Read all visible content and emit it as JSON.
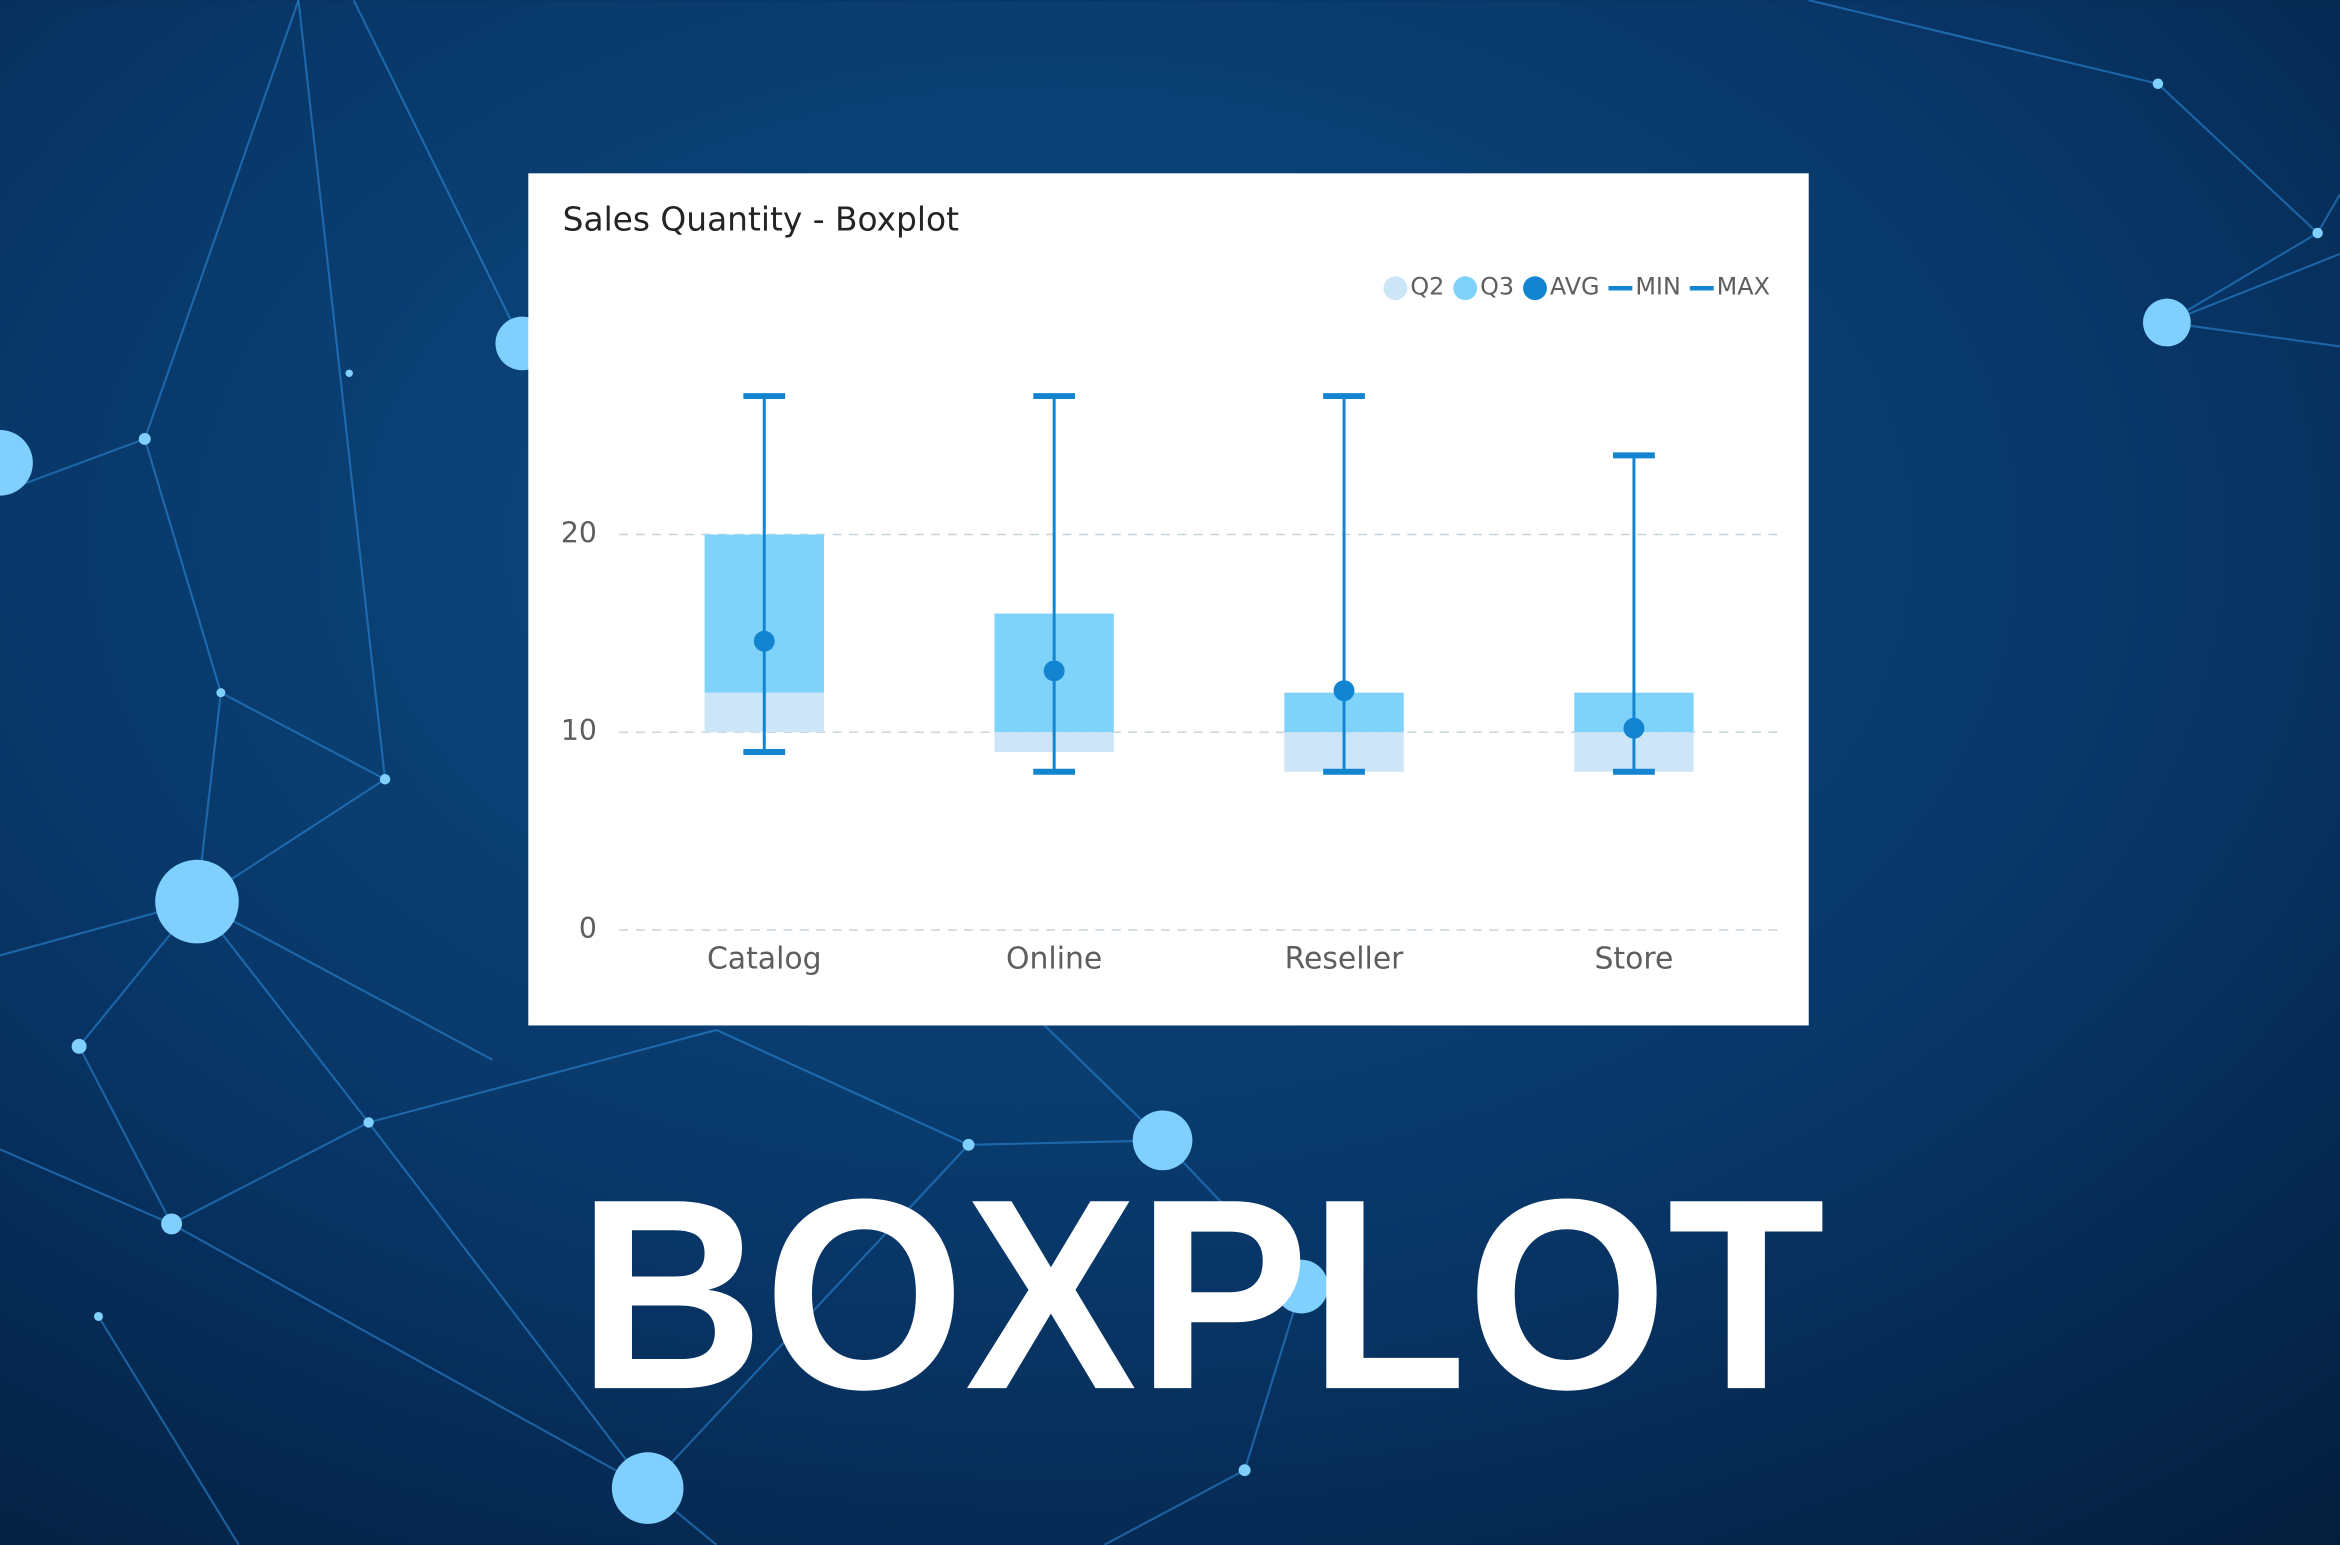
{
  "banner": "BOXPLOT",
  "chart_data": {
    "type": "boxplot",
    "title": "Sales Quantity - Boxplot",
    "categories": [
      "Catalog",
      "Online",
      "Reseller",
      "Store"
    ],
    "q1": [
      10,
      9,
      8,
      8
    ],
    "series": [
      {
        "name": "Q2",
        "color": "#cce6f8",
        "marker": "circle",
        "values": [
          12,
          10,
          10,
          10
        ]
      },
      {
        "name": "Q3",
        "color": "#7fd3fb",
        "marker": "circle",
        "values": [
          20,
          16,
          12,
          12
        ]
      },
      {
        "name": "AVG",
        "color": "#1384d0",
        "marker": "circle",
        "values": [
          14.6,
          13.1,
          12.1,
          10.2
        ]
      },
      {
        "name": "MIN",
        "color": "#1384d0",
        "marker": "line",
        "values": [
          9,
          8,
          8,
          8
        ]
      },
      {
        "name": "MAX",
        "color": "#1384d0",
        "marker": "line",
        "values": [
          27,
          27,
          27,
          24
        ]
      }
    ],
    "ylim": [
      0,
      30
    ],
    "yticks": [
      0,
      10,
      20
    ],
    "grid": true,
    "legend": "top-right"
  }
}
